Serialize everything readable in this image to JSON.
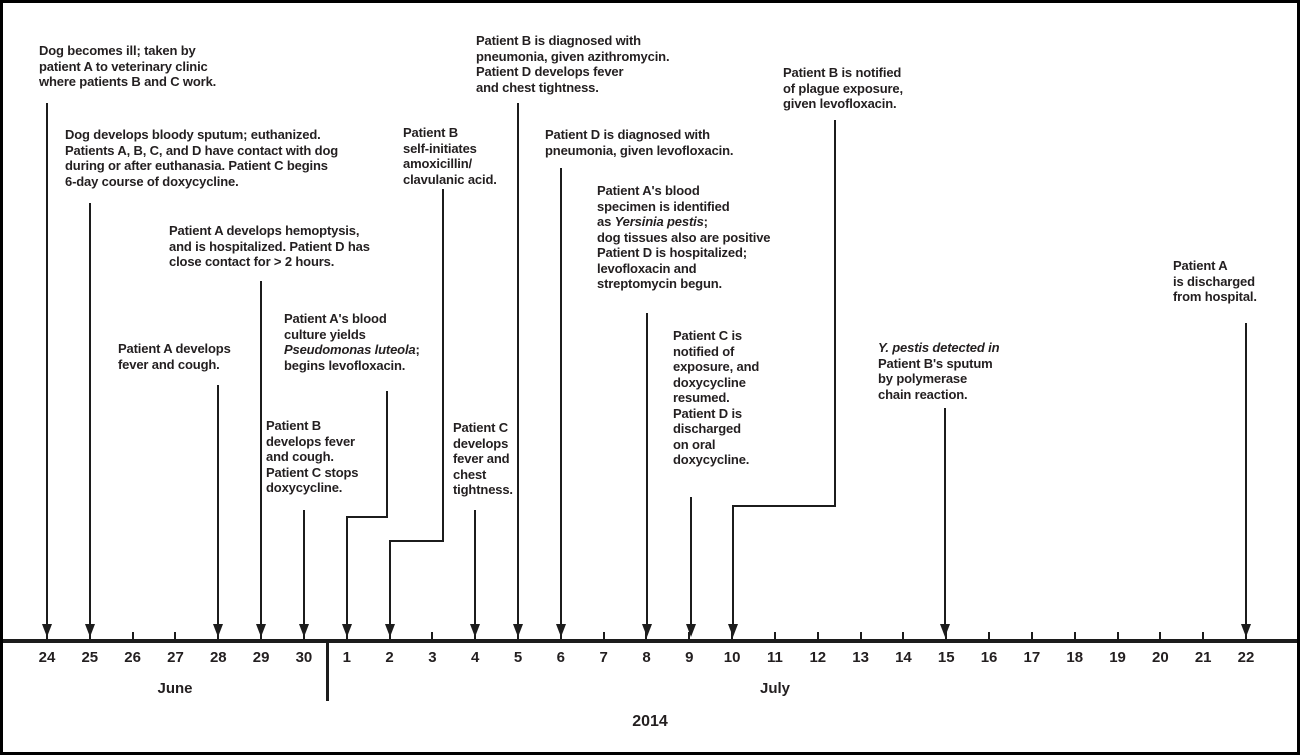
{
  "figure": {
    "description": "Timeline of plague-related events among patients A, B, C, D and a dog, June-July 2014",
    "year_label": "2014",
    "months": [
      {
        "label": "June"
      },
      {
        "label": "July"
      }
    ],
    "timeline": {
      "days": [
        "24",
        "25",
        "26",
        "27",
        "28",
        "29",
        "30",
        "1",
        "2",
        "3",
        "4",
        "5",
        "6",
        "7",
        "8",
        "9",
        "10",
        "11",
        "12",
        "13",
        "14",
        "15",
        "16",
        "17",
        "18",
        "19",
        "20",
        "21",
        "22"
      ]
    },
    "events": [
      {
        "id": "dog-ill",
        "date": "June 24",
        "lines": [
          "Dog becomes ill; taken by",
          "patient A to veterinary clinic",
          "where patients B and C work."
        ]
      },
      {
        "id": "dog-euthanized",
        "date": "June 25",
        "lines": [
          "Dog develops bloody sputum; euthanized.",
          "Patients A, B, C, and D have contact with dog",
          "during or after euthanasia. Patient C begins",
          "6-day course of doxycycline."
        ]
      },
      {
        "id": "patient-a-fever",
        "date": "June 28",
        "lines": [
          "Patient A develops",
          "fever and cough."
        ]
      },
      {
        "id": "patient-a-hemoptysis",
        "date": "June 29",
        "lines": [
          "Patient A develops hemoptysis,",
          "and is hospitalized. Patient D has",
          "close contact for > 2 hours."
        ]
      },
      {
        "id": "patient-b-fever",
        "date": "June 30",
        "lines": [
          "Patient B",
          "develops fever",
          "and cough.",
          "Patient C stops",
          "doxycycline."
        ]
      },
      {
        "id": "patient-a-blood-culture",
        "date": "July 1",
        "lines": [
          "Patient A's blood",
          "culture yields",
          "*Pseudomonas luteola*;",
          "begins levofloxacin."
        ]
      },
      {
        "id": "patient-b-self-initiates",
        "date": "July 2",
        "lines": [
          "Patient B",
          "self-initiates",
          "amoxicillin/",
          "clavulanic acid."
        ]
      },
      {
        "id": "patient-c-fever",
        "date": "July 4",
        "lines": [
          "Patient C",
          "develops",
          "fever and",
          "chest",
          "tightness."
        ]
      },
      {
        "id": "patient-b-diagnosed",
        "date": "July 5",
        "lines": [
          "Patient B is diagnosed with",
          "pneumonia, given azithromycin.",
          "Patient D develops fever",
          "and chest tightness."
        ]
      },
      {
        "id": "patient-d-diagnosed",
        "date": "July 6",
        "lines": [
          "Patient D is diagnosed with",
          "pneumonia, given levofloxacin."
        ]
      },
      {
        "id": "yersinia-identified",
        "date": "July 8",
        "lines": [
          "Patient A's blood",
          "specimen is identified",
          "as *Yersinia pestis*;",
          "dog tissues also are positive",
          "Patient D is hospitalized;",
          "levofloxacin and",
          "streptomycin begun."
        ]
      },
      {
        "id": "patient-c-notified",
        "date": "July 9",
        "lines": [
          "Patient C is",
          "notified of",
          "exposure, and",
          "doxycycline",
          "resumed.",
          "Patient D is",
          "discharged",
          "on oral",
          "doxycycline."
        ]
      },
      {
        "id": "patient-b-notified",
        "date": "July 10",
        "lines": [
          "Patient B is notified",
          "of plague exposure,",
          "given levofloxacin."
        ]
      },
      {
        "id": "pcr-detection",
        "date": "July 15",
        "lines": [
          "*Y. pestis detected in*",
          "Patient B's sputum",
          "by polymerase",
          "chain reaction."
        ]
      },
      {
        "id": "patient-a-discharged",
        "date": "July 22",
        "lines": [
          "Patient A",
          "is discharged",
          "from hospital."
        ]
      }
    ]
  },
  "colors": {
    "text": "#231f20",
    "line": "#1c1c1c",
    "background": "#ffffff",
    "border": "#000000"
  }
}
